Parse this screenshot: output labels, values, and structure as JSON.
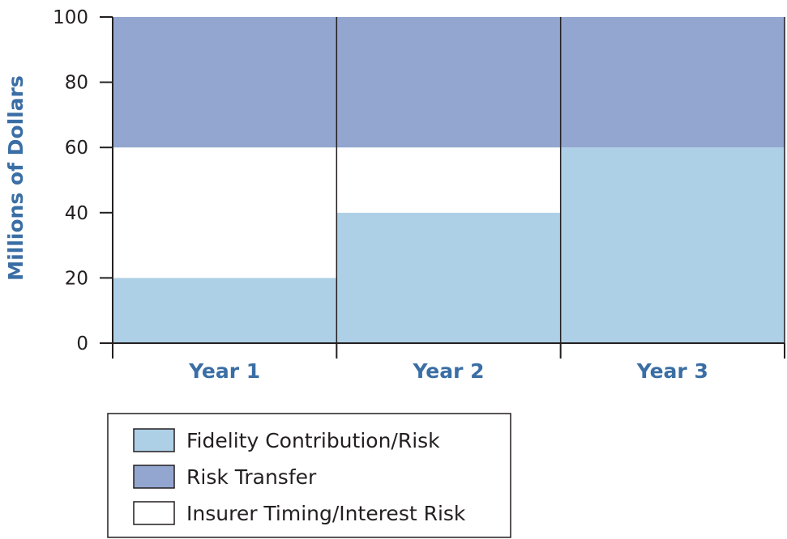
{
  "chart_data": {
    "type": "bar",
    "stacked": true,
    "categories": [
      "Year 1",
      "Year 2",
      "Year 3"
    ],
    "series": [
      {
        "name": "Fidelity Contribution/Risk",
        "values": [
          20,
          40,
          60
        ],
        "color": "#aed0e6"
      },
      {
        "name": "Insurer Timing/Interest Risk",
        "values": [
          40,
          20,
          0
        ],
        "color": "#ffffff"
      },
      {
        "name": "Risk Transfer",
        "values": [
          40,
          40,
          40
        ],
        "color": "#92a6cf"
      }
    ],
    "legend_order": [
      "Fidelity Contribution/Risk",
      "Risk Transfer",
      "Insurer Timing/Interest Risk"
    ],
    "ylabel": "Millions of Dollars",
    "xlabel": "",
    "ylim": [
      0,
      100
    ],
    "yticks": [
      "0",
      "20",
      "40",
      "60",
      "80",
      "100"
    ],
    "grid": false,
    "legend_position": "bottom-center",
    "colors": {
      "label_blue": "#3a6ea5",
      "axis": "#231f20"
    }
  }
}
